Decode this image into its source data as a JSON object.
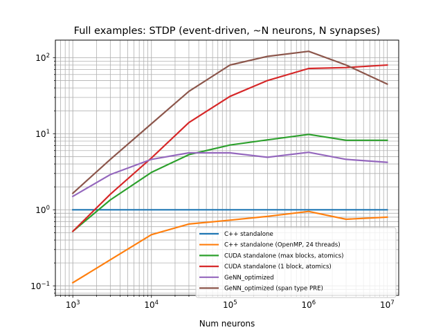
{
  "chart_data": {
    "type": "line",
    "title": "Full examples: STDP (event-driven, ~N neurons, N synapses)",
    "xlabel": "Num neurons",
    "ylabel": "",
    "xscale": "log",
    "yscale": "log",
    "xlim": [
      600,
      14000000
    ],
    "ylim": [
      0.075,
      170
    ],
    "grid": "major and minor",
    "legend_position": "lower-right",
    "x_ticks": [
      {
        "value": 1000,
        "base": "10",
        "exp": "3"
      },
      {
        "value": 10000,
        "base": "10",
        "exp": "4"
      },
      {
        "value": 100000,
        "base": "10",
        "exp": "5"
      },
      {
        "value": 1000000,
        "base": "10",
        "exp": "6"
      },
      {
        "value": 10000000,
        "base": "10",
        "exp": "7"
      }
    ],
    "y_ticks": [
      {
        "value": 0.1,
        "base": "10",
        "exp": "−1"
      },
      {
        "value": 1,
        "base": "10",
        "exp": "0"
      },
      {
        "value": 10,
        "base": "10",
        "exp": "1"
      },
      {
        "value": 100,
        "base": "10",
        "exp": "2"
      }
    ],
    "x": [
      1000,
      3000,
      10000,
      30000,
      100000,
      300000,
      1000000,
      3000000,
      10000000
    ],
    "series": [
      {
        "name": "C++ standalone",
        "color": "#1f77b4",
        "values": [
          1.0,
          1.0,
          1.0,
          1.0,
          1.0,
          1.0,
          1.0,
          1.0,
          1.0
        ]
      },
      {
        "name": "C++ standalone (OpenMP, 24 threads)",
        "color": "#ff7f0e",
        "values": [
          0.11,
          0.22,
          0.47,
          0.65,
          0.73,
          0.82,
          0.95,
          0.75,
          0.8
        ]
      },
      {
        "name": "CUDA standalone (max blocks, atomics)",
        "color": "#2ca02c",
        "values": [
          0.52,
          1.35,
          3.1,
          5.3,
          7.1,
          8.3,
          9.8,
          8.2,
          8.2
        ]
      },
      {
        "name": "CUDA standalone (1 block, atomics)",
        "color": "#d62728",
        "values": [
          0.52,
          1.6,
          4.8,
          14.0,
          31.0,
          50.0,
          72.0,
          74.0,
          80.0
        ]
      },
      {
        "name": "GeNN_optimized",
        "color": "#9467bd",
        "values": [
          1.5,
          2.9,
          4.6,
          5.6,
          5.6,
          4.9,
          5.7,
          4.6,
          4.2
        ]
      },
      {
        "name": "GeNN_optimized (span type PRE)",
        "color": "#8c564b",
        "values": [
          1.65,
          4.6,
          13.5,
          36.0,
          80.0,
          104.0,
          121.0,
          80.0,
          45.0
        ]
      }
    ]
  }
}
